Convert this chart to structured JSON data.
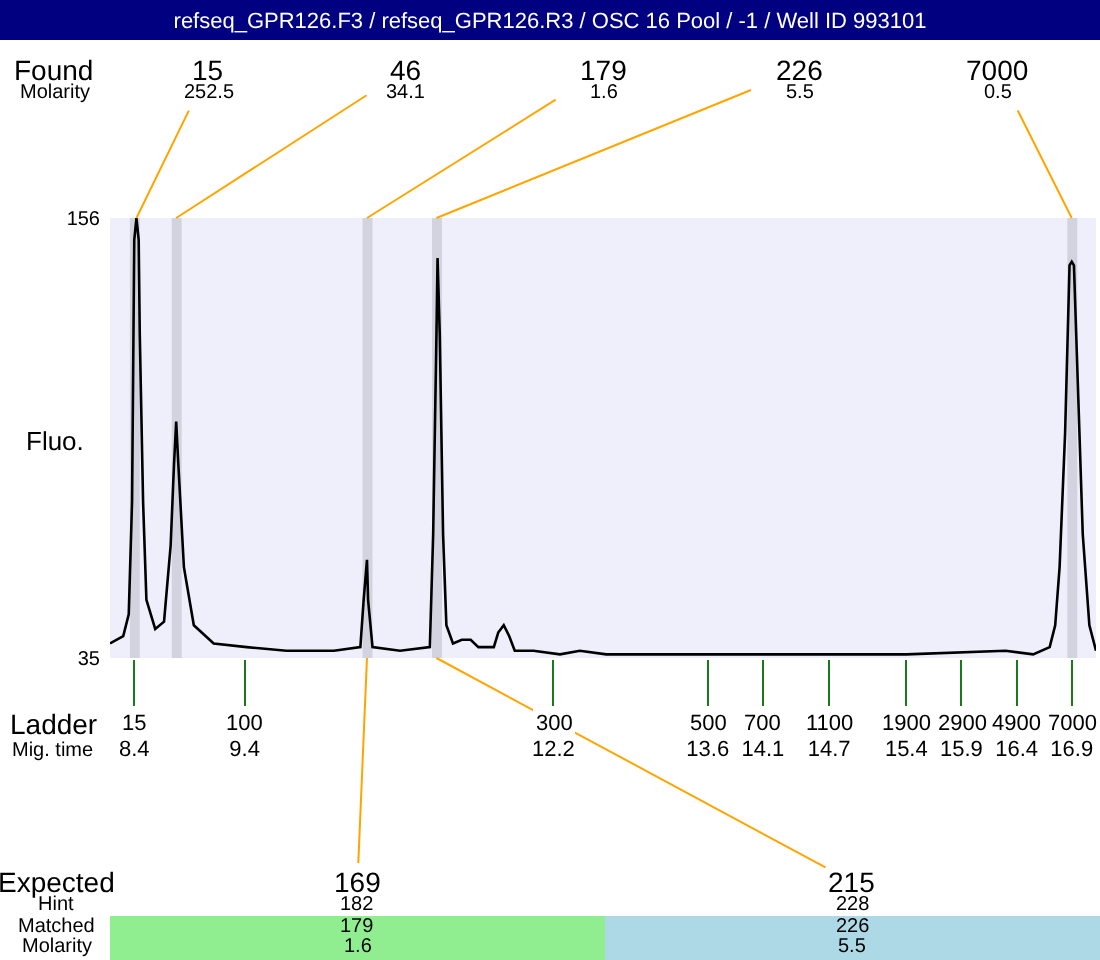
{
  "chart_data": {
    "type": "line",
    "title": "refseq_GPR126.F3 / refseq_GPR126.R3 / OSC 16 Pool / -1 / Well ID 993101",
    "ylabel": "Fluo.",
    "xlabel": "Mig. time",
    "x": [
      8.18,
      8.3,
      8.35,
      8.38,
      8.4,
      8.42,
      8.44,
      8.45,
      8.48,
      8.51,
      8.59,
      8.67,
      8.73,
      8.76,
      8.78,
      8.8,
      8.85,
      8.94,
      9.12,
      9.42,
      9.78,
      10.21,
      10.45,
      10.48,
      10.51,
      10.52,
      10.56,
      10.81,
      11.08,
      11.11,
      11.14,
      11.15,
      11.17,
      11.2,
      11.23,
      11.29,
      11.37,
      11.45,
      11.52,
      11.66,
      11.7,
      11.75,
      11.8,
      11.85,
      12.02,
      12.26,
      12.44,
      12.68,
      13.59,
      14.49,
      15.4,
      16.3,
      16.55,
      16.7,
      16.75,
      16.79,
      16.84,
      16.88,
      16.9,
      16.92,
      16.96,
      17.0,
      17.06,
      17.12
    ],
    "series": [
      {
        "color": "#000000",
        "values": [
          39,
          41,
          47,
          78,
          150,
          156,
          150,
          124,
          78,
          51,
          43,
          45,
          66,
          88,
          100,
          88,
          60,
          44,
          39,
          38,
          37,
          37,
          38,
          51,
          62,
          51,
          38,
          37,
          38,
          69,
          124,
          145,
          124,
          69,
          44,
          39,
          40,
          40,
          38,
          38,
          42,
          44,
          41,
          37,
          37,
          36,
          37,
          36,
          36,
          36,
          36,
          37,
          36,
          38,
          44,
          60,
          97,
          143,
          144,
          143,
          106,
          69,
          44,
          37
        ]
      }
    ],
    "xlim": [
      8.18,
      17.12
    ],
    "ylim": [
      35,
      156
    ],
    "xticks": [
      8.4,
      9.4,
      12.2,
      13.6,
      14.1,
      14.7,
      15.4,
      15.9,
      16.4,
      16.9
    ],
    "yticks": [
      35,
      156
    ],
    "bands": [
      {
        "axis": "x",
        "from": 8.36,
        "to": 8.45,
        "color": "#d3d3e0"
      },
      {
        "axis": "x",
        "from": 8.74,
        "to": 8.83,
        "color": "#d3d3e0"
      },
      {
        "axis": "x",
        "from": 10.47,
        "to": 10.56,
        "color": "#d3d3e0"
      },
      {
        "axis": "x",
        "from": 11.1,
        "to": 11.19,
        "color": "#d3d3e0"
      },
      {
        "axis": "x",
        "from": 16.86,
        "to": 16.95,
        "color": "#d3d3e0"
      }
    ],
    "annotations": [
      "Found",
      "Molarity",
      {
        "text": "15",
        "x": 8.42,
        "y": 156
      },
      "252.5",
      {
        "text": "46",
        "x": 8.78,
        "y": 156
      },
      "34.1",
      {
        "text": "179",
        "x": 10.51,
        "y": 156
      },
      "1.6",
      {
        "text": "226",
        "x": 11.14,
        "y": 156
      },
      "5.5",
      {
        "text": "7000",
        "x": 16.9,
        "y": 156
      },
      "0.5",
      "Ladder",
      "15",
      "100",
      "300",
      "500",
      "700",
      "1100",
      "1900",
      "2900",
      "4900",
      "7000",
      "Expected",
      "Hint",
      "Matched",
      "Molarity",
      {
        "text": "169",
        "x": 10.51,
        "y": 35
      },
      "182",
      "179",
      "1.6",
      {
        "text": "215",
        "x": 11.14,
        "y": 35
      },
      "228",
      "226",
      "5.5"
    ]
  }
}
